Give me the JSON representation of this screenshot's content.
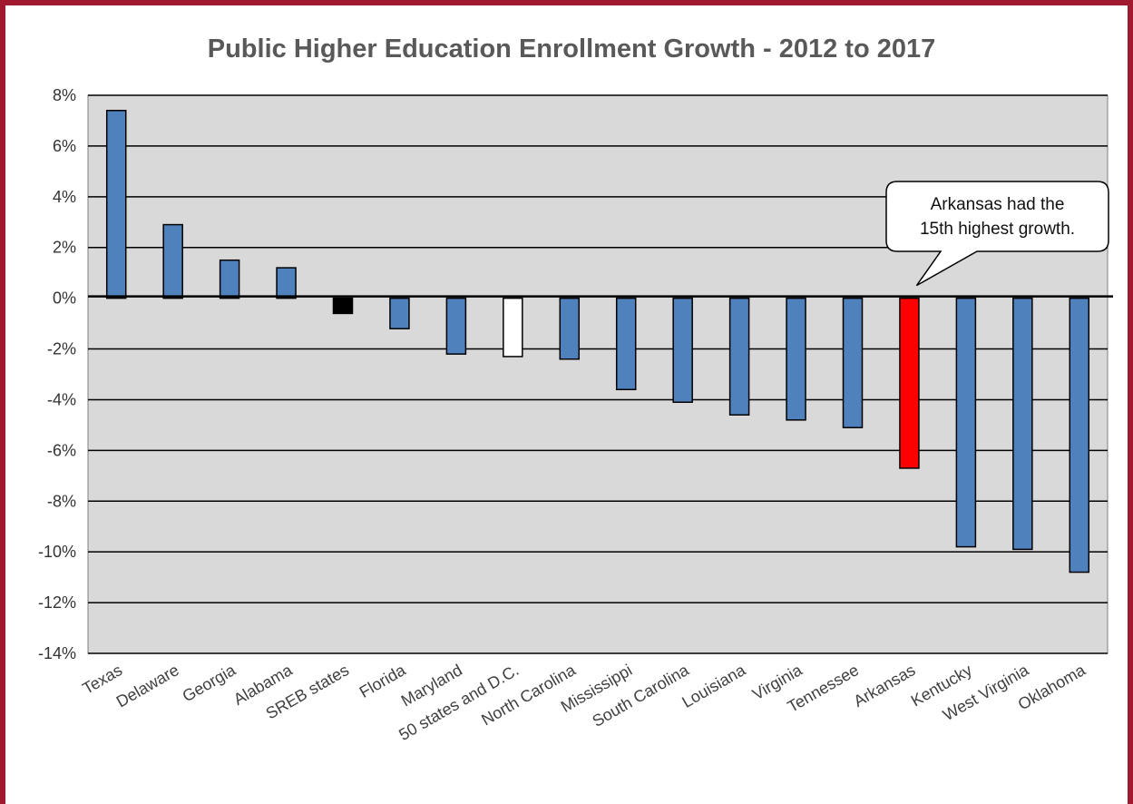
{
  "colors": {
    "frame": "#a0192f",
    "plot_bg": "#d9d9d9",
    "default_bar": "#4f81bd",
    "sreb_bar": "#000000",
    "national_bar": "#ffffff",
    "arkansas_bar": "#ff0000"
  },
  "chart_data": {
    "type": "bar",
    "title": "Public Higher Education Enrollment Growth - 2012 to 2017",
    "xlabel": "",
    "ylabel": "",
    "ylim": [
      -14,
      8
    ],
    "yticks": [
      8,
      6,
      4,
      2,
      0,
      -2,
      -4,
      -6,
      -8,
      -10,
      -12,
      -14
    ],
    "ytick_labels": [
      "8%",
      "6%",
      "4%",
      "2%",
      "0%",
      "-2%",
      "-4%",
      "-6%",
      "-8%",
      "-10%",
      "-12%",
      "-14%"
    ],
    "grid": true,
    "legend": "none",
    "categories": [
      "Texas",
      "Delaware",
      "Georgia",
      "Alabama",
      "SREB states",
      "Florida",
      "Maryland",
      "50 states and D.C.",
      "North Carolina",
      "Mississippi",
      "South Carolina",
      "Louisiana",
      "Virginia",
      "Tennessee",
      "Arkansas",
      "Kentucky",
      "West Virginia",
      "Oklahoma"
    ],
    "values": [
      7.4,
      2.9,
      1.5,
      1.2,
      -0.6,
      -1.2,
      -2.2,
      -2.3,
      -2.4,
      -3.6,
      -4.1,
      -4.6,
      -4.8,
      -5.1,
      -6.7,
      -9.8,
      -9.9,
      -10.8
    ],
    "bar_colors": [
      "#4f81bd",
      "#4f81bd",
      "#4f81bd",
      "#4f81bd",
      "#000000",
      "#4f81bd",
      "#4f81bd",
      "#ffffff",
      "#4f81bd",
      "#4f81bd",
      "#4f81bd",
      "#4f81bd",
      "#4f81bd",
      "#4f81bd",
      "#ff0000",
      "#4f81bd",
      "#4f81bd",
      "#4f81bd"
    ],
    "annotations": [
      {
        "lines": [
          "Arkansas had the",
          "15th highest growth."
        ],
        "target": "Arkansas"
      }
    ]
  }
}
